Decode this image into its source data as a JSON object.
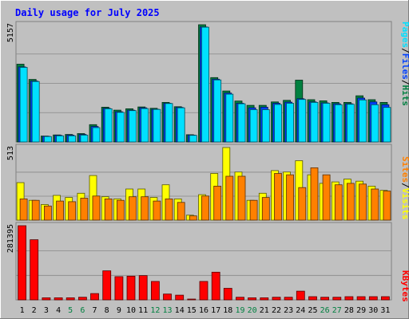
{
  "title": "Daily usage for July 2025",
  "colors": {
    "background": "#C0C0C0",
    "plot_bg": "#C0C0C0",
    "frame_dark": "#808080",
    "title": "#0000FF",
    "hits": "#008040",
    "files": "#0040FF",
    "pages": "#00E0FF",
    "visits": "#FFFF00",
    "sites": "#FF8000",
    "kbytes": "#FF0000",
    "weekday_label": "#000000",
    "weekend_label": "#008040"
  },
  "right_labels": {
    "top": [
      "Pages",
      "Files",
      "Hits"
    ],
    "middle": [
      "Sites",
      "Visits"
    ],
    "bottom": [
      "KBytes"
    ],
    "separator": " / "
  },
  "chart_data": {
    "type": "bar",
    "title": "Daily usage for July 2025",
    "categories": [
      "1",
      "2",
      "3",
      "4",
      "5",
      "6",
      "7",
      "8",
      "9",
      "10",
      "11",
      "12",
      "13",
      "14",
      "15",
      "16",
      "17",
      "18",
      "19",
      "20",
      "21",
      "22",
      "23",
      "24",
      "25",
      "26",
      "27",
      "28",
      "29",
      "30",
      "31"
    ],
    "weekend_days": [
      "5",
      "6",
      "12",
      "13",
      "19",
      "20",
      "26",
      "27"
    ],
    "panels": [
      {
        "id": "hits_files_pages",
        "ymax_label": "5157",
        "ylim": [
          0,
          5157
        ],
        "series": [
          {
            "name": "Hits",
            "color": "#008040",
            "values": [
              3420,
              2750,
              260,
              310,
              330,
              370,
              760,
              1530,
              1400,
              1460,
              1540,
              1480,
              1740,
              1550,
              320,
              5157,
              2830,
              2240,
              1800,
              1610,
              1610,
              1760,
              1830,
              2720,
              1860,
              1810,
              1740,
              1740,
              2030,
              1860,
              1740
            ]
          },
          {
            "name": "Files",
            "color": "#0040FF",
            "values": [
              3300,
              2680,
              250,
              290,
              300,
              330,
              680,
              1480,
              1330,
              1400,
              1500,
              1440,
              1700,
              1520,
              300,
              5060,
              2760,
              2150,
              1700,
              1500,
              1530,
              1700,
              1750,
              1900,
              1760,
              1720,
              1680,
              1680,
              1930,
              1760,
              1640
            ]
          },
          {
            "name": "Pages",
            "color": "#00E0FF",
            "values": [
              3280,
              2660,
              240,
              270,
              270,
              300,
              630,
              1460,
              1300,
              1380,
              1470,
              1430,
              1690,
              1500,
              290,
              5050,
              2730,
              2100,
              1680,
              1420,
              1420,
              1650,
              1700,
              1870,
              1740,
              1700,
              1640,
              1660,
              1850,
              1640,
              1520
            ]
          }
        ]
      },
      {
        "id": "visits_sites",
        "ymax_label": "513",
        "ylim": [
          0,
          513
        ],
        "series": [
          {
            "name": "Visits",
            "color": "#FFFF00",
            "values": [
              265,
              140,
              110,
              175,
              160,
              190,
              315,
              165,
              150,
              220,
              220,
              160,
              250,
              150,
              35,
              180,
              330,
              513,
              340,
              140,
              190,
              350,
              340,
              420,
              320,
              260,
              270,
              290,
              275,
              240,
              210
            ]
          },
          {
            "name": "Sites",
            "color": "#FF8000",
            "values": [
              150,
              140,
              100,
              135,
              130,
              155,
              170,
              150,
              140,
              165,
              165,
              135,
              150,
              125,
              30,
              170,
              240,
              310,
              310,
              140,
              160,
              330,
              320,
              230,
              370,
              320,
              250,
              260,
              255,
              220,
              205
            ]
          }
        ]
      },
      {
        "id": "kbytes",
        "ymax_label": "281395",
        "ylim": [
          0,
          281395
        ],
        "series": [
          {
            "name": "KBytes",
            "color": "#FF0000",
            "values": [
              281395,
              228000,
              8000,
              8000,
              8000,
              10000,
              24000,
              110000,
              88000,
              90000,
              92000,
              70000,
              22000,
              18000,
              3000,
              70000,
              105000,
              44000,
              10000,
              8000,
              8000,
              10000,
              10000,
              33000,
              12000,
              10000,
              10000,
              12000,
              12000,
              12000,
              12000
            ]
          }
        ]
      }
    ]
  }
}
